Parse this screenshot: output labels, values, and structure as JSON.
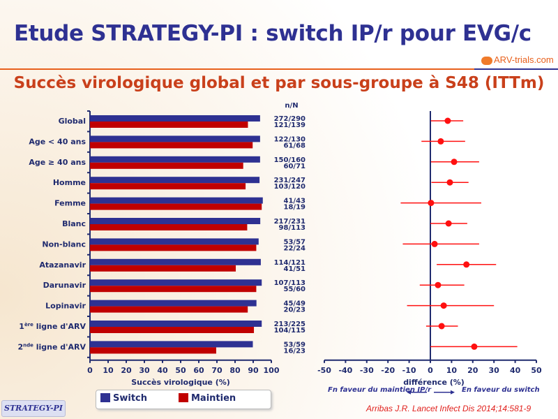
{
  "header": {
    "title": "Etude STRATEGY-PI : switch IP/r pour EVG/c",
    "logo_text": "ARV-trials.com",
    "subtitle": "Succès virologique global et par sous-groupe à S48 (ITTm)"
  },
  "footer": {
    "badge": "STRATEGY-PI",
    "citation": "Arribas J.R. Lancet Infect Dis 2014;14:581-9"
  },
  "colors": {
    "switch": "#2e3192",
    "maintien": "#c00000",
    "point": "#ff1010"
  },
  "chart_data": [
    {
      "type": "bar",
      "orientation": "horizontal",
      "xlabel": "Succès virologique (%)",
      "xlim": [
        0,
        100
      ],
      "xticks": [
        "0",
        "10",
        "20",
        "30",
        "40",
        "50",
        "60",
        "70",
        "80",
        "90",
        "100"
      ],
      "nN_header": "n/N",
      "categories": [
        {
          "label": "Global",
          "sup": "",
          "rest": ""
        },
        {
          "label": "Age < 40 ans",
          "sup": "",
          "rest": ""
        },
        {
          "label": "Age ≥ 40 ans",
          "sup": "",
          "rest": ""
        },
        {
          "label": "Homme",
          "sup": "",
          "rest": ""
        },
        {
          "label": "Femme",
          "sup": "",
          "rest": ""
        },
        {
          "label": "Blanc",
          "sup": "",
          "rest": ""
        },
        {
          "label": "Non-blanc",
          "sup": "",
          "rest": ""
        },
        {
          "label": "Atazanavir",
          "sup": "",
          "rest": ""
        },
        {
          "label": "Darunavir",
          "sup": "",
          "rest": ""
        },
        {
          "label": "Lopinavir",
          "sup": "",
          "rest": ""
        },
        {
          "label": "1",
          "sup": "ère",
          "rest": " ligne d'ARV"
        },
        {
          "label": "2",
          "sup": "nde",
          "rest": " ligne d'ARV"
        }
      ],
      "series": [
        {
          "name": "Switch",
          "nN": [
            "272/290",
            "122/130",
            "150/160",
            "231/247",
            "41/43",
            "217/231",
            "53/57",
            "114/121",
            "107/113",
            "45/49",
            "213/225",
            "53/59"
          ],
          "values": [
            93.8,
            93.8,
            93.8,
            93.5,
            95.3,
            93.9,
            93.0,
            94.2,
            94.7,
            91.8,
            94.7,
            89.8
          ]
        },
        {
          "name": "Maintien",
          "nN": [
            "121/139",
            "61/68",
            "60/71",
            "103/120",
            "18/19",
            "98/113",
            "22/24",
            "41/51",
            "55/60",
            "20/23",
            "104/115",
            "16/23"
          ],
          "values": [
            87.1,
            89.7,
            84.5,
            85.8,
            94.7,
            86.7,
            91.7,
            80.4,
            91.7,
            87.0,
            90.4,
            69.6
          ]
        }
      ]
    },
    {
      "type": "scatter",
      "subtype": "forest",
      "xlabel": "différence (%)",
      "xlim": [
        -50,
        50
      ],
      "xticks": [
        "-50",
        "-40",
        "-30",
        "-20",
        "-10",
        "0",
        "10",
        "20",
        "30",
        "40",
        "50"
      ],
      "left_annotation": "Fn faveur du maintien IP/r",
      "right_annotation": "En faveur du switch",
      "estimates": [
        8.2,
        4.9,
        11.2,
        9.2,
        0.3,
        8.6,
        2.0,
        17.0,
        3.6,
        6.3,
        5.3,
        20.7
      ],
      "ci_low": [
        0.2,
        -4.2,
        0.3,
        0.5,
        -14.0,
        0.0,
        -13.0,
        3.0,
        -5.0,
        -11.0,
        -2.0,
        0.0
      ],
      "ci_high": [
        15.5,
        16.4,
        23.0,
        18.0,
        24.0,
        17.4,
        23.0,
        31.0,
        16.0,
        30.0,
        13.0,
        41.0
      ]
    }
  ]
}
